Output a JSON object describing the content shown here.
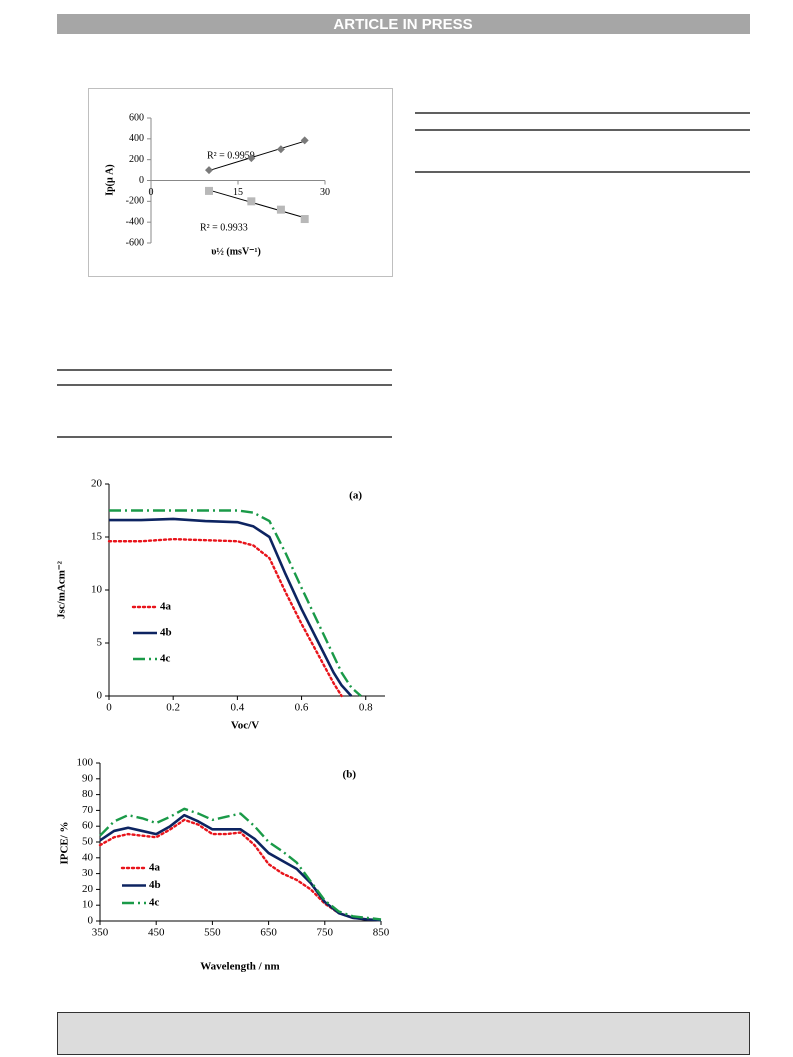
{
  "header": {
    "text": "ARTICLE IN PRESS"
  },
  "chart_data": [
    {
      "type": "scatter",
      "x_label": "υ½ (msV⁻¹)",
      "y_label": "Ip(μ A)",
      "annotations": [
        "R² = 0.9959",
        "R² = 0.9933"
      ],
      "trendline": true,
      "x": [
        10,
        17.3,
        22.4,
        26.5
      ],
      "series": [
        {
          "color": "#7a7a7a",
          "marker": "diamond",
          "values": [
            100,
            215,
            300,
            385
          ]
        },
        {
          "color": "#b8b8b8",
          "marker": "square",
          "values": [
            -100,
            -200,
            -280,
            -370
          ]
        }
      ],
      "xlim": [
        0,
        30
      ],
      "xticks": [
        0,
        15,
        30
      ],
      "ylim": [
        -600,
        600
      ],
      "yticks": [
        -600,
        -400,
        -200,
        0,
        200,
        400,
        600
      ]
    },
    {
      "type": "line",
      "x_label": "Voc/V",
      "y_label": "Jsc/mAcm⁻²",
      "annotations": [
        "(a)"
      ],
      "x": [
        0,
        0.1,
        0.2,
        0.3,
        0.4,
        0.45,
        0.5,
        0.55,
        0.6,
        0.65,
        0.7,
        0.725,
        0.755,
        0.785
      ],
      "series": [
        {
          "name": "4a",
          "color": "#e8141b",
          "dash": "dotted",
          "values": [
            14.6,
            14.6,
            14.8,
            14.7,
            14.6,
            14.2,
            13,
            9.8,
            6.8,
            4,
            1.2,
            0,
            null,
            null
          ]
        },
        {
          "name": "4b",
          "color": "#0d2461",
          "dash": "solid",
          "values": [
            16.6,
            16.6,
            16.7,
            16.5,
            16.4,
            16,
            15,
            11.5,
            8.2,
            5.2,
            2.2,
            1,
            0,
            null
          ]
        },
        {
          "name": "4c",
          "color": "#1a9a48",
          "dash": "dashdot",
          "values": [
            17.5,
            17.5,
            17.5,
            17.5,
            17.5,
            17.3,
            16.5,
            13.5,
            10.2,
            7,
            3.8,
            2.2,
            0.8,
            0
          ]
        }
      ],
      "xlim": [
        0,
        0.86
      ],
      "xticks": [
        0,
        0.2,
        0.4,
        0.6,
        0.8
      ],
      "ylim": [
        0,
        20
      ],
      "yticks": [
        0,
        5,
        10,
        15,
        20
      ]
    },
    {
      "type": "line",
      "x_label": "Wavelength / nm",
      "y_label": "IPCE/ %",
      "annotations": [
        "(b)"
      ],
      "x": [
        350,
        375,
        400,
        425,
        450,
        475,
        500,
        525,
        550,
        575,
        600,
        625,
        650,
        675,
        700,
        725,
        750,
        775,
        800,
        825,
        850
      ],
      "series": [
        {
          "name": "4a",
          "color": "#e8141b",
          "dash": "dotted",
          "values": [
            48,
            53,
            55,
            54,
            53,
            58,
            64,
            61,
            55,
            55,
            56,
            48,
            36,
            30,
            26,
            20,
            11,
            5,
            2,
            1,
            0.5
          ]
        },
        {
          "name": "4b",
          "color": "#0d2461",
          "dash": "solid",
          "values": [
            51,
            57,
            59,
            57,
            55,
            60,
            67,
            63,
            58,
            58,
            58,
            52,
            43,
            38,
            33,
            24,
            12,
            5,
            2,
            1,
            0.5
          ]
        },
        {
          "name": "4c",
          "color": "#1a9a48",
          "dash": "dashdot",
          "values": [
            54,
            63,
            67,
            65,
            62,
            66,
            71,
            68,
            64,
            66,
            68,
            60,
            50,
            44,
            37,
            25,
            13,
            6,
            3,
            2,
            1
          ]
        }
      ],
      "xlim": [
        350,
        850
      ],
      "xticks": [
        350,
        450,
        550,
        650,
        750,
        850
      ],
      "ylim": [
        0,
        100
      ],
      "yticks": [
        0,
        10,
        20,
        30,
        40,
        50,
        60,
        70,
        80,
        90,
        100
      ]
    }
  ]
}
